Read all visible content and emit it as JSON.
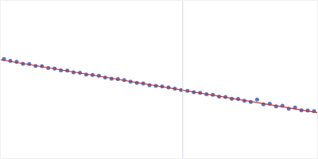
{
  "chart_data": {
    "type": "scatter",
    "x": [
      1,
      3,
      5,
      7,
      9,
      11,
      13,
      15,
      17,
      19,
      21,
      23,
      25,
      27,
      29,
      31,
      33,
      35,
      37,
      39,
      41,
      43,
      45,
      47,
      49,
      51,
      53,
      55,
      57,
      59,
      61,
      63,
      65,
      67,
      69,
      71,
      73,
      75,
      77,
      79,
      81,
      83,
      85,
      87,
      89,
      91,
      93,
      95,
      97,
      99
    ],
    "series": [
      {
        "type": "scatter",
        "marker": "circle",
        "color": "#3a6bbf",
        "values": [
          63.0,
          61.9,
          61.2,
          60.0,
          59.8,
          58.6,
          58.4,
          57.3,
          56.9,
          55.8,
          55.7,
          54.6,
          54.3,
          53.1,
          52.9,
          52.4,
          51.2,
          50.5,
          50.3,
          49.6,
          48.6,
          47.9,
          47.5,
          46.4,
          46.0,
          45.6,
          44.9,
          44.2,
          43.3,
          42.8,
          41.9,
          41.5,
          40.6,
          40.3,
          39.2,
          38.9,
          37.8,
          37.6,
          36.5,
          35.7,
          37.2,
          34.2,
          34.6,
          33.0,
          33.3,
          31.5,
          32.2,
          30.4,
          30.3,
          29.9
        ]
      },
      {
        "type": "line",
        "line_style": "solid",
        "color": "#d62728",
        "x": [
          0,
          100
        ],
        "values": [
          62.5,
          29.0
        ]
      }
    ],
    "xlim": [
      0,
      100
    ],
    "ylim": [
      0,
      100
    ],
    "tick_labels": false,
    "grid": false
  }
}
